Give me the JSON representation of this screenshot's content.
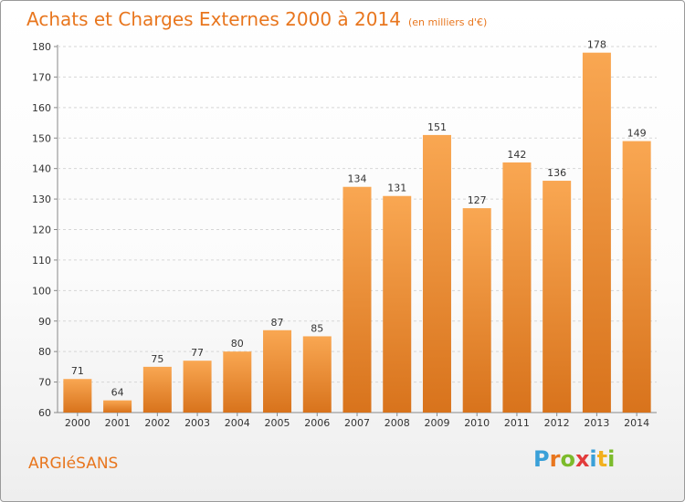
{
  "header": {
    "title": "Achats et Charges Externes 2000 à 2014",
    "subtitle": "(en milliers d'€)"
  },
  "footer": {
    "city": "ARGIéSANS",
    "brand_letters": [
      {
        "char": "P",
        "color": "#3aa0d8"
      },
      {
        "char": "r",
        "color": "#e8761e"
      },
      {
        "char": "o",
        "color": "#7cbb2b"
      },
      {
        "char": "x",
        "color": "#e23b3b"
      },
      {
        "char": "i",
        "color": "#3aa0d8"
      },
      {
        "char": "t",
        "color": "#f2b01e"
      },
      {
        "char": "i",
        "color": "#7cbb2b"
      }
    ]
  },
  "colors": {
    "bar_light": "#f9a752",
    "bar_dark": "#d8731c",
    "accent": "#e8761e"
  },
  "chart_data": {
    "type": "bar",
    "categories": [
      "2000",
      "2001",
      "2002",
      "2003",
      "2004",
      "2005",
      "2006",
      "2007",
      "2008",
      "2009",
      "2010",
      "2011",
      "2012",
      "2013",
      "2014"
    ],
    "values": [
      71,
      64,
      75,
      77,
      80,
      87,
      85,
      134,
      131,
      151,
      127,
      142,
      136,
      178,
      149
    ],
    "ylim": [
      60,
      180
    ],
    "yticks": [
      60,
      70,
      80,
      90,
      100,
      110,
      120,
      130,
      140,
      150,
      160,
      170,
      180
    ],
    "grid": true,
    "legend": "none"
  }
}
